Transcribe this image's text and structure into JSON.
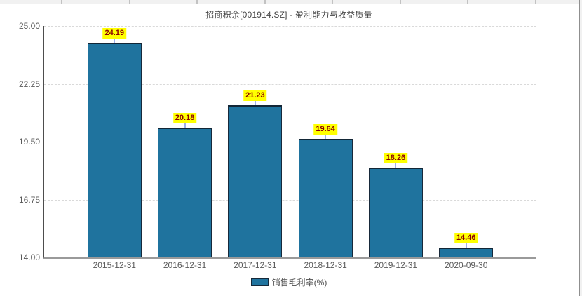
{
  "window": {
    "top_strip_color": "#f1f1f1",
    "edge_color": "#8f8f8f"
  },
  "chart": {
    "title": "招商积余[001914.SZ] - 盈利能力与收益质量",
    "legend_label": "销售毛利率(%)"
  },
  "chart_data": {
    "type": "bar",
    "title": "招商积余[001914.SZ] - 盈利能力与收益质量",
    "categories": [
      "2015-12-31",
      "2016-12-31",
      "2017-12-31",
      "2018-12-31",
      "2019-12-31",
      "2020-09-30"
    ],
    "series": [
      {
        "name": "销售毛利率(%)",
        "values": [
          24.19,
          20.18,
          21.23,
          19.64,
          18.26,
          14.46
        ]
      }
    ],
    "value_labels": [
      "24.19",
      "20.18",
      "21.23",
      "19.64",
      "18.26",
      "14.46"
    ],
    "xlabel": "",
    "ylabel": "",
    "ylim": [
      14.0,
      25.0
    ],
    "yticks": [
      {
        "value": 25.0,
        "label": "25.00"
      },
      {
        "value": 22.25,
        "label": "22.25"
      },
      {
        "value": 19.5,
        "label": "19.50"
      },
      {
        "value": 16.75,
        "label": "16.75"
      },
      {
        "value": 14.0,
        "label": "14.00"
      }
    ],
    "grid": "horizontal-dashed",
    "legend_position": "bottom",
    "colors": {
      "bar_fill": "#1f739e",
      "bar_border": "#17293a",
      "value_label_bg": "#ffff00",
      "value_label_text": "#8b0000",
      "connector": "#3c5fd0",
      "gridline": "#d9d9d9",
      "axis_y": "#4d4d4d",
      "axis_x": "#9a9a9a",
      "tick_text": "#595959",
      "title_text": "#454545"
    }
  }
}
